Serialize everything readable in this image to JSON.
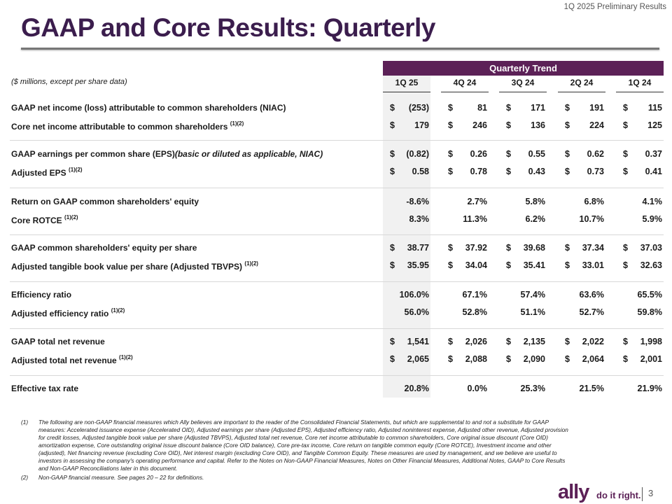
{
  "header": {
    "subtitle": "1Q 2025 Preliminary Results",
    "title": "GAAP and Core Results: Quarterly"
  },
  "table": {
    "group_header": "Quarterly Trend",
    "units_note": "($ millions, except per share data)",
    "columns": [
      "1Q 25",
      "4Q 24",
      "3Q 24",
      "2Q 24",
      "1Q 24"
    ],
    "rows": [
      {
        "label": "GAAP net income (loss) attributable to common shareholders (NIAC)",
        "sup": "",
        "dollar": true,
        "values": [
          "(253)",
          "81",
          "171",
          "191",
          "115"
        ]
      },
      {
        "label": "Core net income attributable to common shareholders",
        "sup": "(1)(2)",
        "dollar": true,
        "values": [
          "179",
          "246",
          "136",
          "224",
          "125"
        ]
      },
      {
        "label": "GAAP earnings per common share (EPS)",
        "italic": "(basic or diluted as applicable, NIAC)",
        "sup": "",
        "dollar": true,
        "values": [
          "(0.82)",
          "0.26",
          "0.55",
          "0.62",
          "0.37"
        ]
      },
      {
        "label": "Adjusted EPS",
        "sup": "(1)(2)",
        "dollar": true,
        "values": [
          "0.58",
          "0.78",
          "0.43",
          "0.73",
          "0.41"
        ]
      },
      {
        "label": "Return on GAAP common shareholders' equity",
        "sup": "",
        "dollar": false,
        "values": [
          "-8.6%",
          "2.7%",
          "5.8%",
          "6.8%",
          "4.1%"
        ]
      },
      {
        "label": "Core ROTCE",
        "sup": "(1)(2)",
        "dollar": false,
        "values": [
          "8.3%",
          "11.3%",
          "6.2%",
          "10.7%",
          "5.9%"
        ]
      },
      {
        "label": "GAAP common shareholders' equity per share",
        "sup": "",
        "dollar": true,
        "values": [
          "38.77",
          "37.92",
          "39.68",
          "37.34",
          "37.03"
        ]
      },
      {
        "label": "Adjusted tangible book value per share (Adjusted TBVPS)",
        "sup": "(1)(2)",
        "dollar": true,
        "values": [
          "35.95",
          "34.04",
          "35.41",
          "33.01",
          "32.63"
        ]
      },
      {
        "label": "Efficiency ratio",
        "sup": "",
        "dollar": false,
        "values": [
          "106.0%",
          "67.1%",
          "57.4%",
          "63.6%",
          "65.5%"
        ]
      },
      {
        "label": "Adjusted efficiency ratio",
        "sup": "(1)(2)",
        "dollar": false,
        "values": [
          "56.0%",
          "52.8%",
          "51.1%",
          "52.7%",
          "59.8%"
        ]
      },
      {
        "label": "GAAP total net revenue",
        "sup": "",
        "dollar": true,
        "values": [
          "1,541",
          "2,026",
          "2,135",
          "2,022",
          "1,998"
        ]
      },
      {
        "label": "Adjusted total net revenue",
        "sup": "(1)(2)",
        "dollar": true,
        "values": [
          "2,065",
          "2,088",
          "2,090",
          "2,064",
          "2,001"
        ]
      },
      {
        "label": "Effective tax rate",
        "sup": "",
        "dollar": false,
        "values": [
          "20.8%",
          "0.0%",
          "25.3%",
          "21.5%",
          "21.9%"
        ]
      }
    ],
    "currency_symbol": "$"
  },
  "footnotes": [
    {
      "num": "(1)",
      "text": "The following are non-GAAP financial measures which Ally believes are important to the reader of the Consolidated Financial Statements, but which are supplemental to and not a substitute for GAAP measures: Accelerated issuance expense (Accelerated OID), Adjusted earnings per share (Adjusted EPS), Adjusted efficiency ratio, Adjusted noninterest expense, Adjusted other revenue, Adjusted provision for credit losses, Adjusted tangible book value per share (Adjusted TBVPS), Adjusted total net revenue, Core net income attributable to common shareholders, Core original issue discount (Core OID) amortization expense, Core outstanding original issue discount balance (Core OID balance), Core pre-tax income, Core return on tangible common equity (Core ROTCE), Investment income and other (adjusted), Net financing revenue (excluding Core OID), Net interest margin (excluding Core OID), and Tangible Common Equity. These measures are used by management, and we believe are useful to investors in assessing the company's operating performance and capital. Refer to the Notes on Non-GAAP Financial Measures, Notes on Other Financial Measures, Additional Notes, GAAP to Core Results and Non-GAAP Reconciliations later in this document."
    },
    {
      "num": "(2)",
      "text": "Non-GAAP financial measure. See pages 20 – 22 for definitions."
    }
  ],
  "footer": {
    "logo": "ally",
    "tagline": "do it right.",
    "page": "3",
    "brand_color": "#5c2157"
  }
}
